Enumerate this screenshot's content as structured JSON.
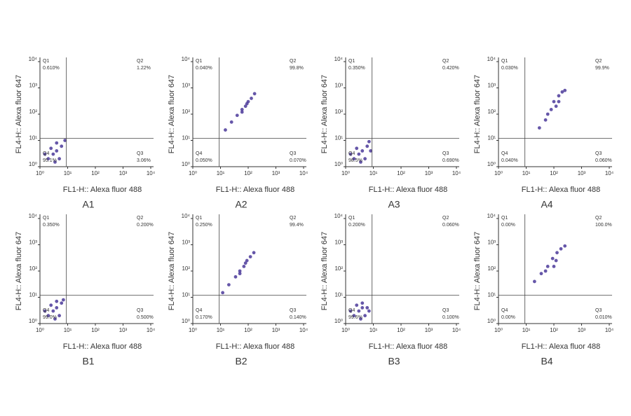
{
  "chart_data": [
    {
      "type": "scatter",
      "title": "A1",
      "xlabel": "FL1-H:: Alexa fluor 488",
      "ylabel": "FL4-H:: Alexa fluor 647",
      "log_x": true,
      "log_y": true,
      "xlim": [
        1,
        10000
      ],
      "ylim": [
        1,
        10000
      ],
      "xticks": [
        {
          "value": 1,
          "label": "10⁰"
        },
        {
          "value": 10,
          "label": "10¹"
        },
        {
          "value": 100,
          "label": "10²"
        },
        {
          "value": 1000,
          "label": "10³"
        },
        {
          "value": 10000,
          "label": "10⁴"
        }
      ],
      "yticks": [
        {
          "value": 1,
          "label": "10⁰"
        },
        {
          "value": 10,
          "label": "10¹"
        },
        {
          "value": 100,
          "label": "10²"
        },
        {
          "value": 1000,
          "label": "10³"
        },
        {
          "value": 10000,
          "label": "10⁴"
        }
      ],
      "gate_x": 9,
      "gate_y": 12,
      "color": "#4b3a9a",
      "x": [
        2,
        3,
        4,
        5,
        2.5,
        3.5,
        6,
        1.5,
        4,
        8
      ],
      "y": [
        2,
        3,
        4,
        2,
        5,
        1.5,
        6,
        3,
        8,
        10
      ],
      "quadrants": [
        {
          "name": "Q1",
          "value": 0.61,
          "label": "0.610%"
        },
        {
          "name": "Q2",
          "value": 1.22,
          "label": "1.22%"
        },
        {
          "name": "Q3",
          "value": 3.06,
          "label": "3.06%"
        },
        {
          "name": "Q4",
          "value": 95.1,
          "label": "95.1%"
        }
      ]
    },
    {
      "type": "scatter",
      "title": "A2",
      "xlabel": "FL1-H:: Alexa fluor 488",
      "ylabel": "FL4-H:: Alexa fluor 647",
      "log_x": true,
      "log_y": true,
      "xlim": [
        1,
        10000
      ],
      "ylim": [
        1,
        10000
      ],
      "xticks": [
        {
          "value": 1,
          "label": "10⁰"
        },
        {
          "value": 10,
          "label": "10¹"
        },
        {
          "value": 100,
          "label": "10²"
        },
        {
          "value": 1000,
          "label": "10³"
        },
        {
          "value": 10000,
          "label": "10⁴"
        }
      ],
      "yticks": [
        {
          "value": 1,
          "label": "10⁰"
        },
        {
          "value": 10,
          "label": "10¹"
        },
        {
          "value": 100,
          "label": "10²"
        },
        {
          "value": 1000,
          "label": "10³"
        },
        {
          "value": 10000,
          "label": "10⁴"
        }
      ],
      "gate_x": 9,
      "gate_y": 12,
      "color": "#4b3a9a",
      "x": [
        15,
        25,
        40,
        60,
        80,
        100,
        130,
        170,
        60,
        90
      ],
      "y": [
        25,
        50,
        90,
        150,
        200,
        300,
        400,
        600,
        120,
        250
      ],
      "quadrants": [
        {
          "name": "Q1",
          "value": 0.04,
          "label": "0.040%"
        },
        {
          "name": "Q2",
          "value": 99.8,
          "label": "99.8%"
        },
        {
          "name": "Q3",
          "value": 0.07,
          "label": "0.070%"
        },
        {
          "name": "Q4",
          "value": 0.05,
          "label": "0.050%"
        }
      ]
    },
    {
      "type": "scatter",
      "title": "A3",
      "xlabel": "FL1-H:: Alexa fluor 488",
      "ylabel": "FL4-H:: Alexa fluor 647",
      "log_x": true,
      "log_y": true,
      "xlim": [
        1,
        10000
      ],
      "ylim": [
        1,
        10000
      ],
      "xticks": [
        {
          "value": 1,
          "label": "10⁰"
        },
        {
          "value": 10,
          "label": "10¹"
        },
        {
          "value": 100,
          "label": "10²"
        },
        {
          "value": 1000,
          "label": "10³"
        },
        {
          "value": 10000,
          "label": "10⁴"
        }
      ],
      "yticks": [
        {
          "value": 1,
          "label": "10⁰"
        },
        {
          "value": 10,
          "label": "10¹"
        },
        {
          "value": 100,
          "label": "10²"
        },
        {
          "value": 1000,
          "label": "10³"
        },
        {
          "value": 10000,
          "label": "10⁴"
        }
      ],
      "gate_x": 9,
      "gate_y": 12,
      "color": "#4b3a9a",
      "x": [
        2,
        3,
        4,
        5,
        2.5,
        3.5,
        6,
        1.5,
        7,
        8
      ],
      "y": [
        2,
        3,
        4,
        2,
        5,
        1.5,
        6,
        3,
        9,
        4
      ],
      "quadrants": [
        {
          "name": "Q1",
          "value": 0.35,
          "label": "0.350%"
        },
        {
          "name": "Q2",
          "value": 0.42,
          "label": "0.420%"
        },
        {
          "name": "Q3",
          "value": 0.69,
          "label": "0.690%"
        },
        {
          "name": "Q4",
          "value": 98.5,
          "label": "98.5%"
        }
      ]
    },
    {
      "type": "scatter",
      "title": "A4",
      "xlabel": "FL1-H:: Alexa fluor 488",
      "ylabel": "FL4-H:: Alexa fluor 647",
      "log_x": true,
      "log_y": true,
      "xlim": [
        1,
        10000
      ],
      "ylim": [
        1,
        10000
      ],
      "xticks": [
        {
          "value": 1,
          "label": "10⁰"
        },
        {
          "value": 10,
          "label": "10¹"
        },
        {
          "value": 100,
          "label": "10²"
        },
        {
          "value": 1000,
          "label": "10³"
        },
        {
          "value": 10000,
          "label": "10⁴"
        }
      ],
      "yticks": [
        {
          "value": 1,
          "label": "10⁰"
        },
        {
          "value": 10,
          "label": "10¹"
        },
        {
          "value": 100,
          "label": "10²"
        },
        {
          "value": 1000,
          "label": "10³"
        },
        {
          "value": 10000,
          "label": "10⁴"
        }
      ],
      "gate_x": 9,
      "gate_y": 12,
      "color": "#4b3a9a",
      "x": [
        30,
        50,
        80,
        100,
        150,
        200,
        250,
        150,
        120,
        60
      ],
      "y": [
        30,
        60,
        150,
        300,
        500,
        700,
        800,
        300,
        200,
        100
      ],
      "quadrants": [
        {
          "name": "Q1",
          "value": 0.03,
          "label": "0.030%"
        },
        {
          "name": "Q2",
          "value": 99.9,
          "label": "99.9%"
        },
        {
          "name": "Q3",
          "value": 0.06,
          "label": "0.060%"
        },
        {
          "name": "Q4",
          "value": 0.04,
          "label": "0.040%"
        }
      ]
    },
    {
      "type": "scatter",
      "title": "B1",
      "xlabel": "FL1-H:: Alexa fluor 488",
      "ylabel": "FL4-H:: Alexa fluor 647",
      "log_x": true,
      "log_y": true,
      "xlim": [
        1,
        10000
      ],
      "ylim": [
        1,
        10000
      ],
      "xticks": [
        {
          "value": 1,
          "label": "10⁰"
        },
        {
          "value": 10,
          "label": "10¹"
        },
        {
          "value": 100,
          "label": "10²"
        },
        {
          "value": 1000,
          "label": "10³"
        },
        {
          "value": 10000,
          "label": "10⁴"
        }
      ],
      "yticks": [
        {
          "value": 1,
          "label": "10⁰"
        },
        {
          "value": 10,
          "label": "10¹"
        },
        {
          "value": 100,
          "label": "10²"
        },
        {
          "value": 1000,
          "label": "10³"
        },
        {
          "value": 10000,
          "label": "10⁴"
        }
      ],
      "gate_x": 9,
      "gate_y": 12,
      "color": "#4b3a9a",
      "x": [
        2,
        3,
        4,
        5,
        2.5,
        3.5,
        6,
        1.5,
        4,
        7
      ],
      "y": [
        2,
        3,
        4,
        2,
        5,
        1.5,
        6,
        3,
        7,
        8
      ],
      "quadrants": [
        {
          "name": "Q1",
          "value": 0.35,
          "label": "0.350%"
        },
        {
          "name": "Q2",
          "value": 0.2,
          "label": "0.200%"
        },
        {
          "name": "Q3",
          "value": 0.5,
          "label": "0.500%"
        },
        {
          "name": "Q4",
          "value": 99.0,
          "label": "99.0%"
        }
      ]
    },
    {
      "type": "scatter",
      "title": "B2",
      "xlabel": "FL1-H:: Alexa fluor 488",
      "ylabel": "FL4-H:: Alexa fluor 647",
      "log_x": true,
      "log_y": true,
      "xlim": [
        1,
        10000
      ],
      "ylim": [
        1,
        10000
      ],
      "xticks": [
        {
          "value": 1,
          "label": "10⁰"
        },
        {
          "value": 10,
          "label": "10¹"
        },
        {
          "value": 100,
          "label": "10²"
        },
        {
          "value": 1000,
          "label": "10³"
        },
        {
          "value": 10000,
          "label": "10⁴"
        }
      ],
      "yticks": [
        {
          "value": 1,
          "label": "10⁰"
        },
        {
          "value": 10,
          "label": "10¹"
        },
        {
          "value": 100,
          "label": "10²"
        },
        {
          "value": 1000,
          "label": "10³"
        },
        {
          "value": 10000,
          "label": "10⁴"
        }
      ],
      "gate_x": 9,
      "gate_y": 12,
      "color": "#4b3a9a",
      "x": [
        12,
        20,
        35,
        50,
        70,
        90,
        120,
        160,
        50,
        80
      ],
      "y": [
        15,
        30,
        60,
        100,
        150,
        250,
        350,
        500,
        80,
        200
      ],
      "quadrants": [
        {
          "name": "Q1",
          "value": 0.25,
          "label": "0.250%"
        },
        {
          "name": "Q2",
          "value": 99.4,
          "label": "99.4%"
        },
        {
          "name": "Q3",
          "value": 0.14,
          "label": "0.140%"
        },
        {
          "name": "Q4",
          "value": 0.17,
          "label": "0.170%"
        }
      ]
    },
    {
      "type": "scatter",
      "title": "B3",
      "xlabel": "FL1-H:: Alexa fluor 488",
      "ylabel": "FL4-H:: Alexa fluor 647",
      "log_x": true,
      "log_y": true,
      "xlim": [
        1,
        10000
      ],
      "ylim": [
        1,
        10000
      ],
      "xticks": [
        {
          "value": 1,
          "label": "10⁰"
        },
        {
          "value": 10,
          "label": "10¹"
        },
        {
          "value": 100,
          "label": "10²"
        },
        {
          "value": 1000,
          "label": "10³"
        },
        {
          "value": 10000,
          "label": "10⁴"
        }
      ],
      "yticks": [
        {
          "value": 1,
          "label": "10⁰"
        },
        {
          "value": 10,
          "label": "10¹"
        },
        {
          "value": 100,
          "label": "10²"
        },
        {
          "value": 1000,
          "label": "10³"
        },
        {
          "value": 10000,
          "label": "10⁴"
        }
      ],
      "gate_x": 9,
      "gate_y": 12,
      "color": "#4b3a9a",
      "x": [
        2,
        3,
        4,
        5,
        2.5,
        3.5,
        6,
        1.5,
        4,
        7
      ],
      "y": [
        2,
        3,
        4,
        2,
        5,
        1.5,
        4,
        3,
        6,
        3
      ],
      "quadrants": [
        {
          "name": "Q1",
          "value": 0.2,
          "label": "0.200%"
        },
        {
          "name": "Q2",
          "value": 0.06,
          "label": "0.060%"
        },
        {
          "name": "Q3",
          "value": 0.1,
          "label": "0.100%"
        },
        {
          "name": "Q4",
          "value": 99.6,
          "label": "99.6%"
        }
      ]
    },
    {
      "type": "scatter",
      "title": "B4",
      "xlabel": "FL1-H:: Alexa fluor 488",
      "ylabel": "FL4-H:: Alexa fluor 647",
      "log_x": true,
      "log_y": true,
      "xlim": [
        1,
        10000
      ],
      "ylim": [
        1,
        10000
      ],
      "xticks": [
        {
          "value": 1,
          "label": "10⁰"
        },
        {
          "value": 10,
          "label": "10¹"
        },
        {
          "value": 100,
          "label": "10²"
        },
        {
          "value": 1000,
          "label": "10³"
        },
        {
          "value": 10000,
          "label": "10⁴"
        }
      ],
      "yticks": [
        {
          "value": 1,
          "label": "10⁰"
        },
        {
          "value": 10,
          "label": "10¹"
        },
        {
          "value": 100,
          "label": "10²"
        },
        {
          "value": 1000,
          "label": "10³"
        },
        {
          "value": 10000,
          "label": "10⁴"
        }
      ],
      "gate_x": 9,
      "gate_y": 12,
      "color": "#4b3a9a",
      "x": [
        20,
        35,
        60,
        90,
        130,
        180,
        250,
        120,
        100,
        50
      ],
      "y": [
        40,
        80,
        150,
        300,
        500,
        700,
        900,
        250,
        150,
        100
      ],
      "quadrants": [
        {
          "name": "Q1",
          "value": 0.0,
          "label": "0.00%"
        },
        {
          "name": "Q2",
          "value": 100.0,
          "label": "100.0%"
        },
        {
          "name": "Q3",
          "value": 0.01,
          "label": "0.010%"
        },
        {
          "name": "Q4",
          "value": 0.0,
          "label": "0.00%"
        }
      ]
    }
  ]
}
